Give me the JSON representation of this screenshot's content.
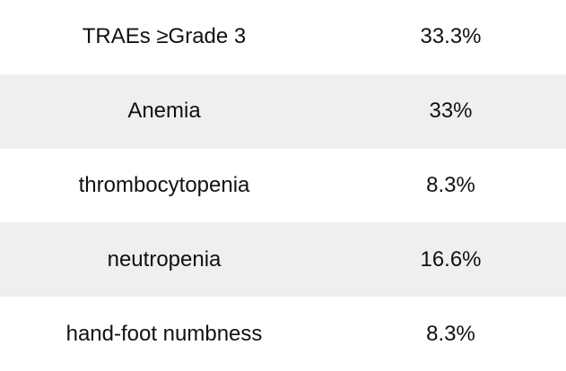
{
  "table": {
    "rows": [
      [
        "TRAEs ≥Grade 3",
        "33.3%"
      ],
      [
        "Anemia",
        "33%"
      ],
      [
        "thrombocytopenia",
        "8.3%"
      ],
      [
        "neutropenia",
        "16.6%"
      ],
      [
        "hand-foot numbness",
        "8.3%"
      ]
    ]
  }
}
